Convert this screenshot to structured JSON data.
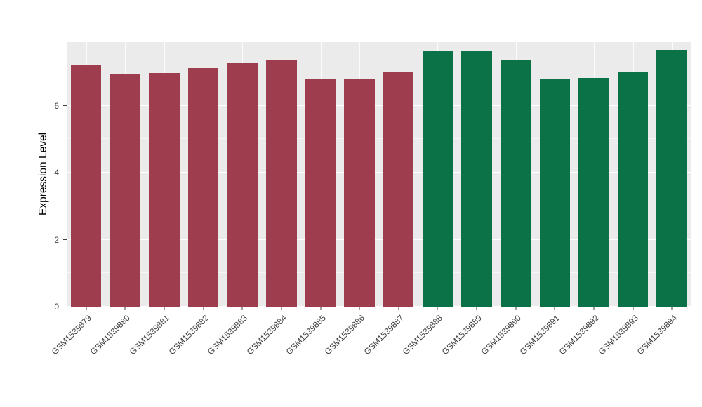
{
  "chart_data": {
    "type": "bar",
    "title": "",
    "xlabel": "",
    "ylabel": "Expression Level",
    "ylim": [
      0,
      7.9
    ],
    "yticks": [
      0,
      2,
      4,
      6
    ],
    "minor_ticks": [
      1,
      3,
      5,
      7
    ],
    "grid": "on",
    "legend": "none",
    "plot_background": "#EBEBEB",
    "grid_color": "#FFFFFF",
    "axis_text_color": "#404040",
    "categories": [
      "GSM1539879",
      "GSM1539880",
      "GSM1539881",
      "GSM1539882",
      "GSM1539883",
      "GSM1539884",
      "GSM1539885",
      "GSM1539886",
      "GSM1539887",
      "GSM1539888",
      "GSM1539889",
      "GSM1539890",
      "GSM1539891",
      "GSM1539892",
      "GSM1539893",
      "GSM1539894"
    ],
    "values": [
      7.2,
      6.93,
      6.97,
      7.12,
      7.27,
      7.35,
      6.82,
      6.79,
      7.03,
      7.62,
      7.63,
      7.38,
      6.81,
      6.84,
      7.01,
      7.67
    ],
    "bar_colors": [
      "#9E3D4E",
      "#9E3D4E",
      "#9E3D4E",
      "#9E3D4E",
      "#9E3D4E",
      "#9E3D4E",
      "#9E3D4E",
      "#9E3D4E",
      "#9E3D4E",
      "#0B7147",
      "#0B7147",
      "#0B7147",
      "#0B7147",
      "#0B7147",
      "#0B7147",
      "#0B7147"
    ]
  }
}
